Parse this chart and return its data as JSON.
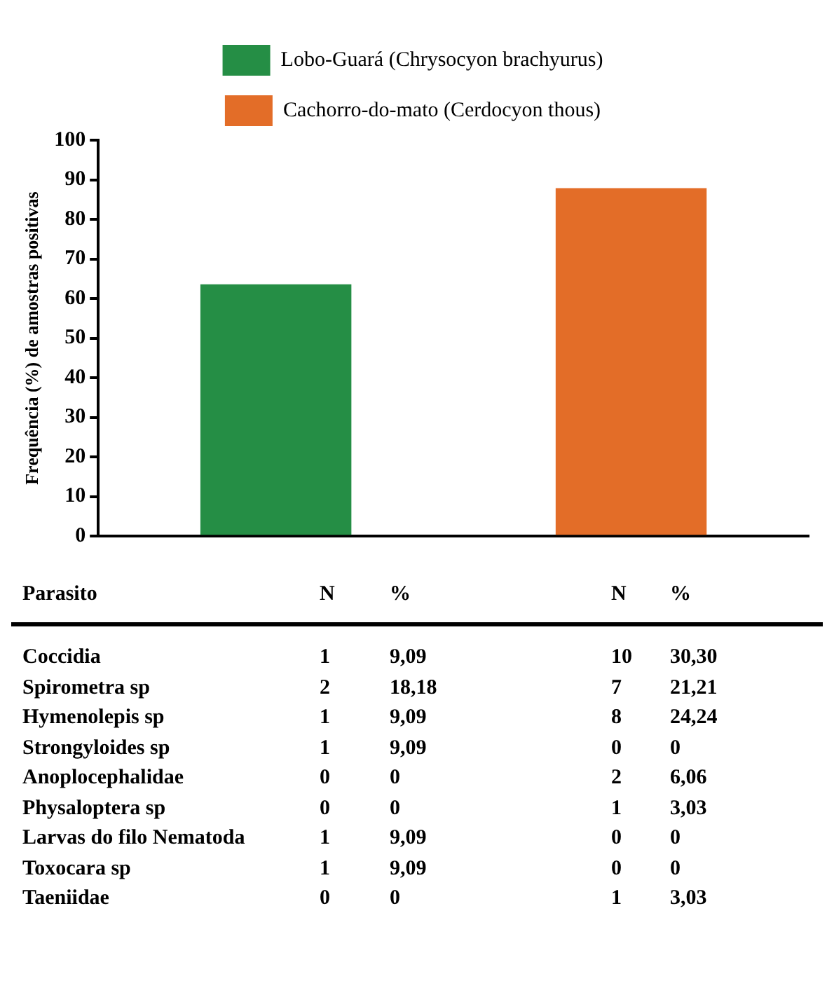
{
  "chart_data": [
    {
      "type": "bar",
      "ylabel": "Frequência (%) de amostras positivas",
      "categories": [
        null,
        null
      ],
      "series": [
        {
          "name": "Lobo-Guará (Chrysocyon brachyurus)",
          "color": "#258e45",
          "values": [
            63.6,
            null
          ]
        },
        {
          "name": "Cachorro-do-mato (Cerdocyon thous)",
          "color": "#e36d28",
          "values": [
            null,
            87.9
          ]
        }
      ],
      "ylim": [
        0,
        100
      ],
      "yticks": [
        0,
        10,
        20,
        30,
        40,
        50,
        60,
        70,
        80,
        90,
        100
      ],
      "grid": false,
      "legend": "top"
    },
    {
      "type": "other",
      "xlabel": "Parasito",
      "categories": [
        "Coccidia",
        "Spirometra sp",
        "Hymenolepis sp",
        "Strongyloides sp",
        "Anoplocephalidae",
        "Physaloptera sp",
        "Larvas do filo Nematoda",
        "Toxocara sp",
        "Taeniidae"
      ],
      "series": [
        {
          "name": "N",
          "values": [
            1,
            2,
            1,
            1,
            0,
            0,
            1,
            1,
            0
          ],
          "value_labels": [
            "1",
            "2",
            "1",
            "1",
            "0",
            "0",
            "1",
            "1",
            "0"
          ]
        },
        {
          "name": "%",
          "values": [
            9.09,
            18.18,
            9.09,
            9.09,
            0,
            0,
            9.09,
            9.09,
            0
          ],
          "value_labels": [
            "9,09",
            "18,18",
            "9,09",
            "9,09",
            "0",
            "0",
            "9,09",
            "9,09",
            "0"
          ]
        },
        {
          "name": "N",
          "values": [
            10,
            7,
            8,
            0,
            2,
            1,
            0,
            0,
            1
          ],
          "value_labels": [
            "10",
            "7",
            "8",
            "0",
            "2",
            "1",
            "0",
            "0",
            "1"
          ]
        },
        {
          "name": "%",
          "values": [
            30.3,
            21.21,
            24.24,
            0,
            6.06,
            3.03,
            0,
            0,
            3.03
          ],
          "value_labels": [
            "30,30",
            "21,21",
            "24,24",
            "0",
            "6,06",
            "3,03",
            "0",
            "0",
            "3,03"
          ]
        }
      ]
    }
  ]
}
